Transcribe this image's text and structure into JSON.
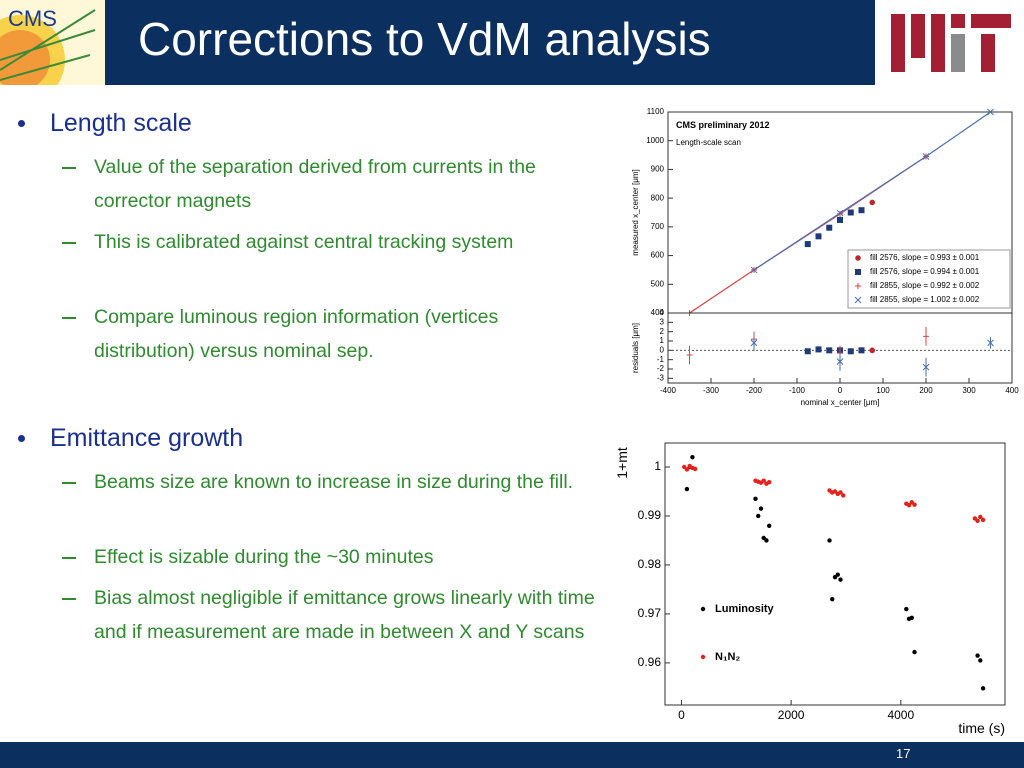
{
  "header": {
    "title": "Corrections to VdM analysis",
    "logo_text": "CMS"
  },
  "bullets": [
    {
      "text": "Length scale",
      "items": [
        "Value of the separation derived from currents in the corrector magnets",
        "This is calibrated against central tracking system",
        "Compare luminous region information (vertices distribution) versus nominal sep."
      ]
    },
    {
      "text": "Emittance growth",
      "items": [
        "Beams size are known to increase in size during the fill.",
        "Effect is sizable during the ~30 minutes",
        "Bias almost negligible if emittance grows linearly with time and if measurement are made in between X and Y scans"
      ]
    }
  ],
  "footer": {
    "page": "17"
  },
  "chart_data": [
    {
      "type": "scatter",
      "title": "CMS preliminary 2012",
      "subtitle": "Length-scale scan",
      "y_label": "measured x_center [μm]",
      "xlim": [
        -400,
        400
      ],
      "ylim": [
        400,
        1100
      ],
      "yticks": [
        400,
        500,
        600,
        700,
        800,
        900,
        1000,
        1100
      ],
      "series": [
        {
          "name": "fill 2576, slope = 0.993 ± 0.001",
          "color": "#c0282d",
          "marker": "circle",
          "x": [
            75
          ],
          "values": [
            785
          ]
        },
        {
          "name": "fill 2576, slope = 0.994 ± 0.001",
          "color": "#1f3a78",
          "marker": "square",
          "x": [
            -75,
            -50,
            -25,
            0,
            25,
            50
          ],
          "values": [
            640,
            667,
            697,
            724,
            750,
            758
          ]
        },
        {
          "name": "fill 2855, slope = 0.992 ± 0.002",
          "color": "#e04040",
          "marker": "plus",
          "line": true,
          "x": [
            -350,
            -200,
            0,
            200
          ],
          "values": [
            400,
            550,
            745,
            945
          ]
        },
        {
          "name": "fill 2855, slope = 1.002 ± 0.002",
          "color": "#4a6fb0",
          "marker": "x",
          "line": true,
          "x": [
            -200,
            0,
            200,
            350
          ],
          "values": [
            550,
            748,
            945,
            1100
          ]
        }
      ]
    },
    {
      "type": "scatter",
      "y_label": "residuals [μm]",
      "x_label": "nominal x_center [μm]",
      "xlim": [
        -400,
        400
      ],
      "ylim": [
        -3.5,
        4
      ],
      "yticks": [
        -3,
        -2,
        -1,
        0,
        1,
        2,
        3,
        4
      ],
      "xticks": [
        -400,
        -300,
        -200,
        -100,
        0,
        100,
        200,
        300,
        400
      ],
      "series": [
        {
          "color": "#c0282d",
          "marker": "circle",
          "x": [
            75
          ],
          "values": [
            0
          ],
          "errors": [
            0.2
          ]
        },
        {
          "color": "#1f3a78",
          "marker": "square",
          "x": [
            -75,
            -50,
            -25,
            0,
            25,
            50
          ],
          "values": [
            -0.1,
            0.1,
            0,
            0,
            -0.1,
            0
          ],
          "errors": [
            0.2,
            0.2,
            0.2,
            0.2,
            0.2,
            0.2
          ]
        },
        {
          "color": "#e04040",
          "marker": "plus",
          "x": [
            -350,
            -200,
            0,
            200
          ],
          "values": [
            -0.5,
            1.2,
            -0.3,
            1.5
          ],
          "errors": [
            1,
            0.8,
            0.8,
            1
          ]
        },
        {
          "color": "#4a6fb0",
          "marker": "x",
          "x": [
            -200,
            0,
            200,
            350
          ],
          "values": [
            0.8,
            -1.2,
            -1.8,
            0.8
          ],
          "errors": [
            0.9,
            1,
            1,
            0.6
          ]
        }
      ]
    },
    {
      "type": "scatter",
      "y_label": "1+mt",
      "x_label": "time (s)",
      "xlim": [
        -300,
        5900
      ],
      "ylim": [
        0.9514,
        1.0049
      ],
      "xticks": [
        0,
        2000,
        4000
      ],
      "yticks": [
        0.96,
        0.97,
        0.98,
        0.99,
        1
      ],
      "series": [
        {
          "name": "Luminosity",
          "color": "#000000",
          "marker": "dot",
          "x": [
            100,
            150,
            200,
            1350,
            1400,
            1450,
            1500,
            1550,
            1600,
            2700,
            2750,
            2800,
            2850,
            2900,
            4100,
            4150,
            4200,
            4250,
            5400,
            5450,
            5500
          ],
          "values": [
            0.9955,
            1.0,
            1.002,
            0.9935,
            0.99,
            0.9915,
            0.9855,
            0.985,
            0.988,
            0.985,
            0.973,
            0.9775,
            0.978,
            0.977,
            0.971,
            0.969,
            0.9692,
            0.9622,
            0.9615,
            0.9605,
            0.9548
          ]
        },
        {
          "name": "N₁N₂",
          "color": "#e8201c",
          "marker": "dot",
          "x": [
            50,
            100,
            150,
            200,
            250,
            1350,
            1400,
            1450,
            1500,
            1550,
            1600,
            2700,
            2750,
            2800,
            2850,
            2900,
            2950,
            4100,
            4150,
            4200,
            4250,
            5350,
            5400,
            5450,
            5500
          ],
          "values": [
            1.0,
            0.9995,
            1.0002,
            0.9998,
            0.9996,
            0.9972,
            0.997,
            0.9968,
            0.9972,
            0.9966,
            0.9969,
            0.9952,
            0.9948,
            0.995,
            0.9945,
            0.9948,
            0.9942,
            0.9925,
            0.9922,
            0.9928,
            0.9923,
            0.9895,
            0.989,
            0.9898,
            0.9892
          ]
        }
      ]
    }
  ]
}
